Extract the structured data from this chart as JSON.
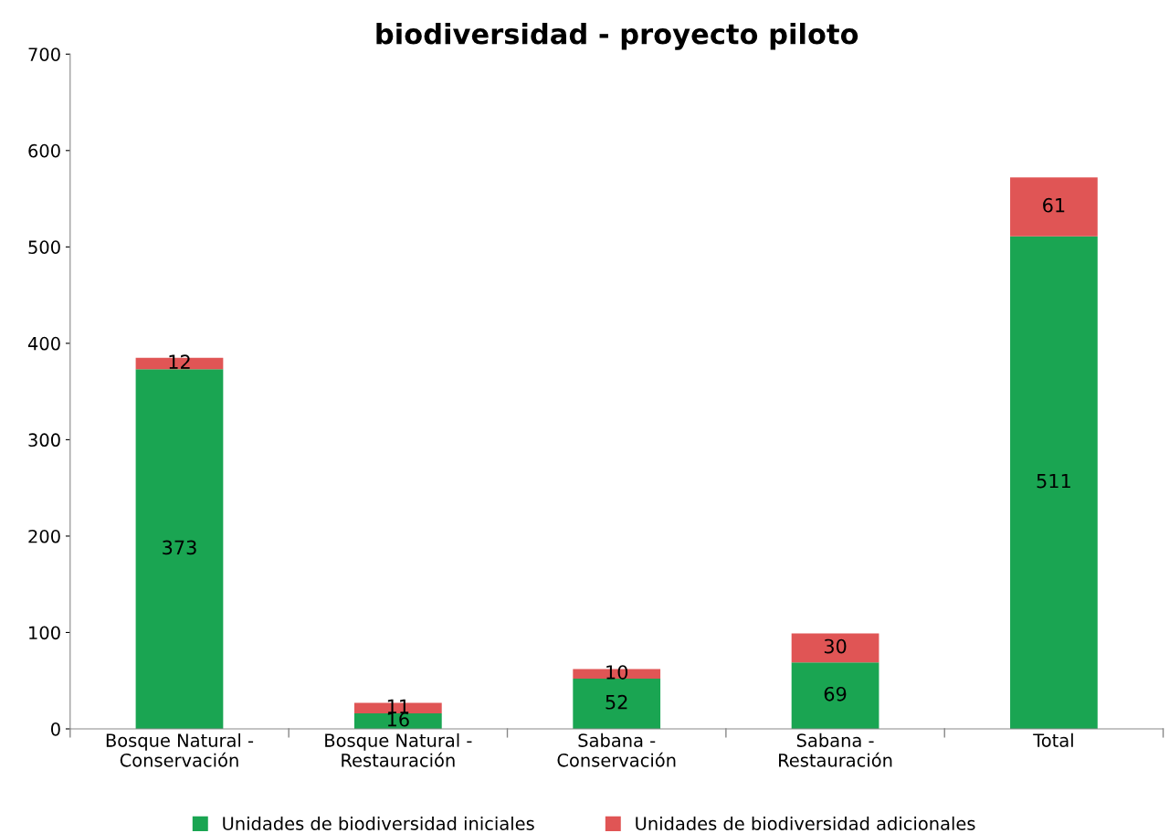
{
  "chart_data": {
    "type": "bar",
    "title": "biodiversidad - proyecto piloto",
    "stacked": true,
    "data_labels": true,
    "legend": "bottom",
    "grid": false,
    "categories": [
      "Bosque Natural - Conservación",
      "Bosque Natural - Restauración",
      "Sabana - Conservación",
      "Sabana - Restauración",
      "Total"
    ],
    "series": [
      {
        "name": "Unidades de biodiversidad iniciales",
        "color": "#1aa552",
        "values": [
          373,
          16,
          52,
          69,
          511
        ]
      },
      {
        "name": "Unidades de biodiversidad adicionales",
        "color": "#e05555",
        "values": [
          12,
          11,
          10,
          30,
          61
        ]
      }
    ],
    "ylim": [
      0,
      700
    ],
    "yticks": [
      0,
      100,
      200,
      300,
      400,
      500,
      600,
      700
    ]
  }
}
